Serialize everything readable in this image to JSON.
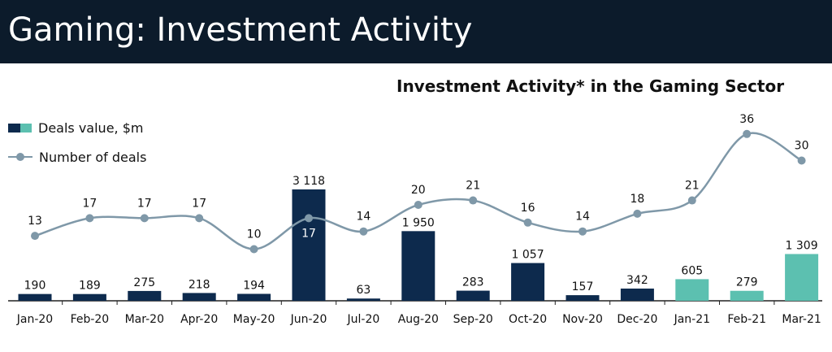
{
  "header": {
    "title": "Gaming: Investment Activity"
  },
  "colors": {
    "header_bg": "#0c1b2b",
    "bar_2020": "#0d2a4d",
    "bar_2021": "#5cc0b0",
    "line": "#7f98a8"
  },
  "chart_data": {
    "type": "bar+line",
    "title": "Investment Activity* in the Gaming Sector",
    "categories": [
      "Jan-20",
      "Feb-20",
      "Mar-20",
      "Apr-20",
      "May-20",
      "Jun-20",
      "Jul-20",
      "Aug-20",
      "Sep-20",
      "Oct-20",
      "Nov-20",
      "Dec-20",
      "Jan-21",
      "Feb-21",
      "Mar-21"
    ],
    "series": [
      {
        "name": "Deals value, $m",
        "type": "bar",
        "values": [
          190,
          189,
          275,
          218,
          194,
          3118,
          63,
          1950,
          283,
          1057,
          157,
          342,
          605,
          279,
          1309
        ],
        "labels": [
          "190",
          "189",
          "275",
          "218",
          "194",
          "3 118",
          "63",
          "1 950",
          "283",
          "1 057",
          "157",
          "342",
          "605",
          "279",
          "1 309"
        ]
      },
      {
        "name": "Number of deals",
        "type": "line",
        "values": [
          13,
          17,
          17,
          17,
          10,
          17,
          14,
          20,
          21,
          16,
          14,
          18,
          21,
          36,
          30
        ],
        "labels": [
          "13",
          "17",
          "17",
          "17",
          "10",
          "17",
          "14",
          "20",
          "21",
          "16",
          "14",
          "18",
          "21",
          "36",
          "30"
        ]
      }
    ],
    "legend": [
      "Deals value, $m",
      "Number of deals"
    ],
    "legend_position": "left"
  }
}
